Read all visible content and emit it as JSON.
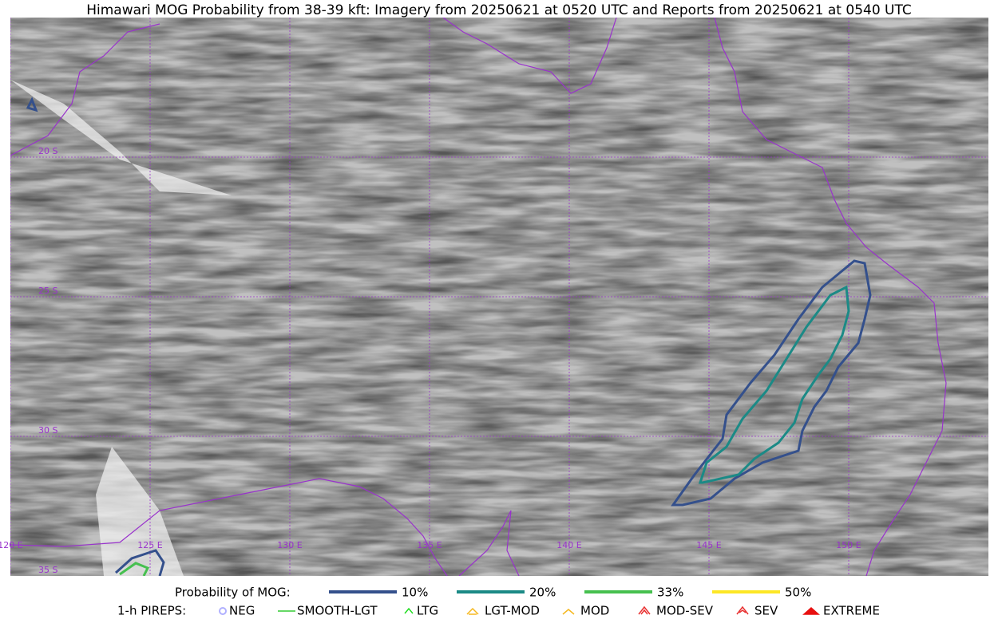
{
  "title": "Himawari MOG Probability from 38-39 kft: Imagery from 20250621 at 0520 UTC and Reports from 20250621 at 0540 UTC",
  "map": {
    "lat_labels": [
      "20 S",
      "25 S",
      "30 S",
      "35 S"
    ],
    "lon_labels": [
      "120 E",
      "125 E",
      "130 E",
      "135 E",
      "140 E",
      "145 E",
      "150 E"
    ]
  },
  "legend": {
    "probability": {
      "title": "Probability of MOG:",
      "items": [
        {
          "label": "10%",
          "color": "#34508c"
        },
        {
          "label": "20%",
          "color": "#1b8a86"
        },
        {
          "label": "33%",
          "color": "#46c04f"
        },
        {
          "label": "50%",
          "color": "#fde725"
        }
      ]
    },
    "pireps": {
      "title": "1-h PIREPS:",
      "items": [
        {
          "label": "NEG",
          "color": "#b0b0ff"
        },
        {
          "label": "SMOOTH-LGT",
          "color": "#33cc33"
        },
        {
          "label": "LTG",
          "color": "#22dd22"
        },
        {
          "label": "LGT-MOD",
          "color": "#f5b820"
        },
        {
          "label": "MOD",
          "color": "#f5b820"
        },
        {
          "label": "MOD-SEV",
          "color": "#e83030"
        },
        {
          "label": "SEV",
          "color": "#e83030"
        },
        {
          "label": "EXTREME",
          "color": "#e81010"
        }
      ]
    }
  }
}
